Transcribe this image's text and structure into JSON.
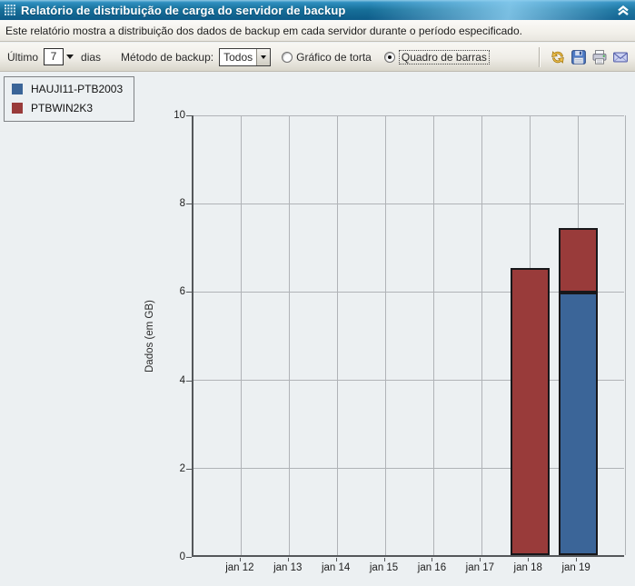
{
  "window": {
    "title": "Relatório de distribuição de carga do servidor de backup",
    "description": "Este relatório mostra a distribuição dos dados de backup em cada servidor durante o período especificado.",
    "title_icon": "grid-handle-icon",
    "collapse_icon": "chevron-double-up-icon"
  },
  "toolbar": {
    "last_label": "Último",
    "days_value": "7",
    "days_unit": "dias",
    "backup_method_label": "Método de backup:",
    "backup_method_value": "Todos",
    "radio_pie_label": "Gráfico de torta",
    "radio_bars_label": "Quadro de barras",
    "selected_chart_type": "Quadro de barras",
    "icons": [
      "refresh-icon",
      "save-icon",
      "print-icon",
      "email-icon"
    ]
  },
  "chart_data": {
    "type": "bar",
    "stacked": true,
    "title": "",
    "xlabel": "",
    "ylabel": "Dados (em GB)",
    "ylim": [
      0,
      10
    ],
    "ytick_step": 2,
    "grid": "both",
    "legend_position": "top-left",
    "categories": [
      "jan 12",
      "jan 13",
      "jan 14",
      "jan 15",
      "jan 16",
      "jan 17",
      "jan 18",
      "jan 19"
    ],
    "series": [
      {
        "name": "HAUJI11-PTB2003",
        "color": "#3b6598",
        "values": [
          0,
          0,
          0,
          0,
          0,
          0,
          0,
          5.95
        ]
      },
      {
        "name": "PTBWIN2K3",
        "color": "#993b3a",
        "values": [
          0,
          0,
          0,
          0,
          0,
          0,
          6.5,
          1.45
        ]
      }
    ],
    "colors": {
      "axis": "#54575a",
      "gridline": "#b0b3b7",
      "background": "#ecf0f2"
    }
  }
}
